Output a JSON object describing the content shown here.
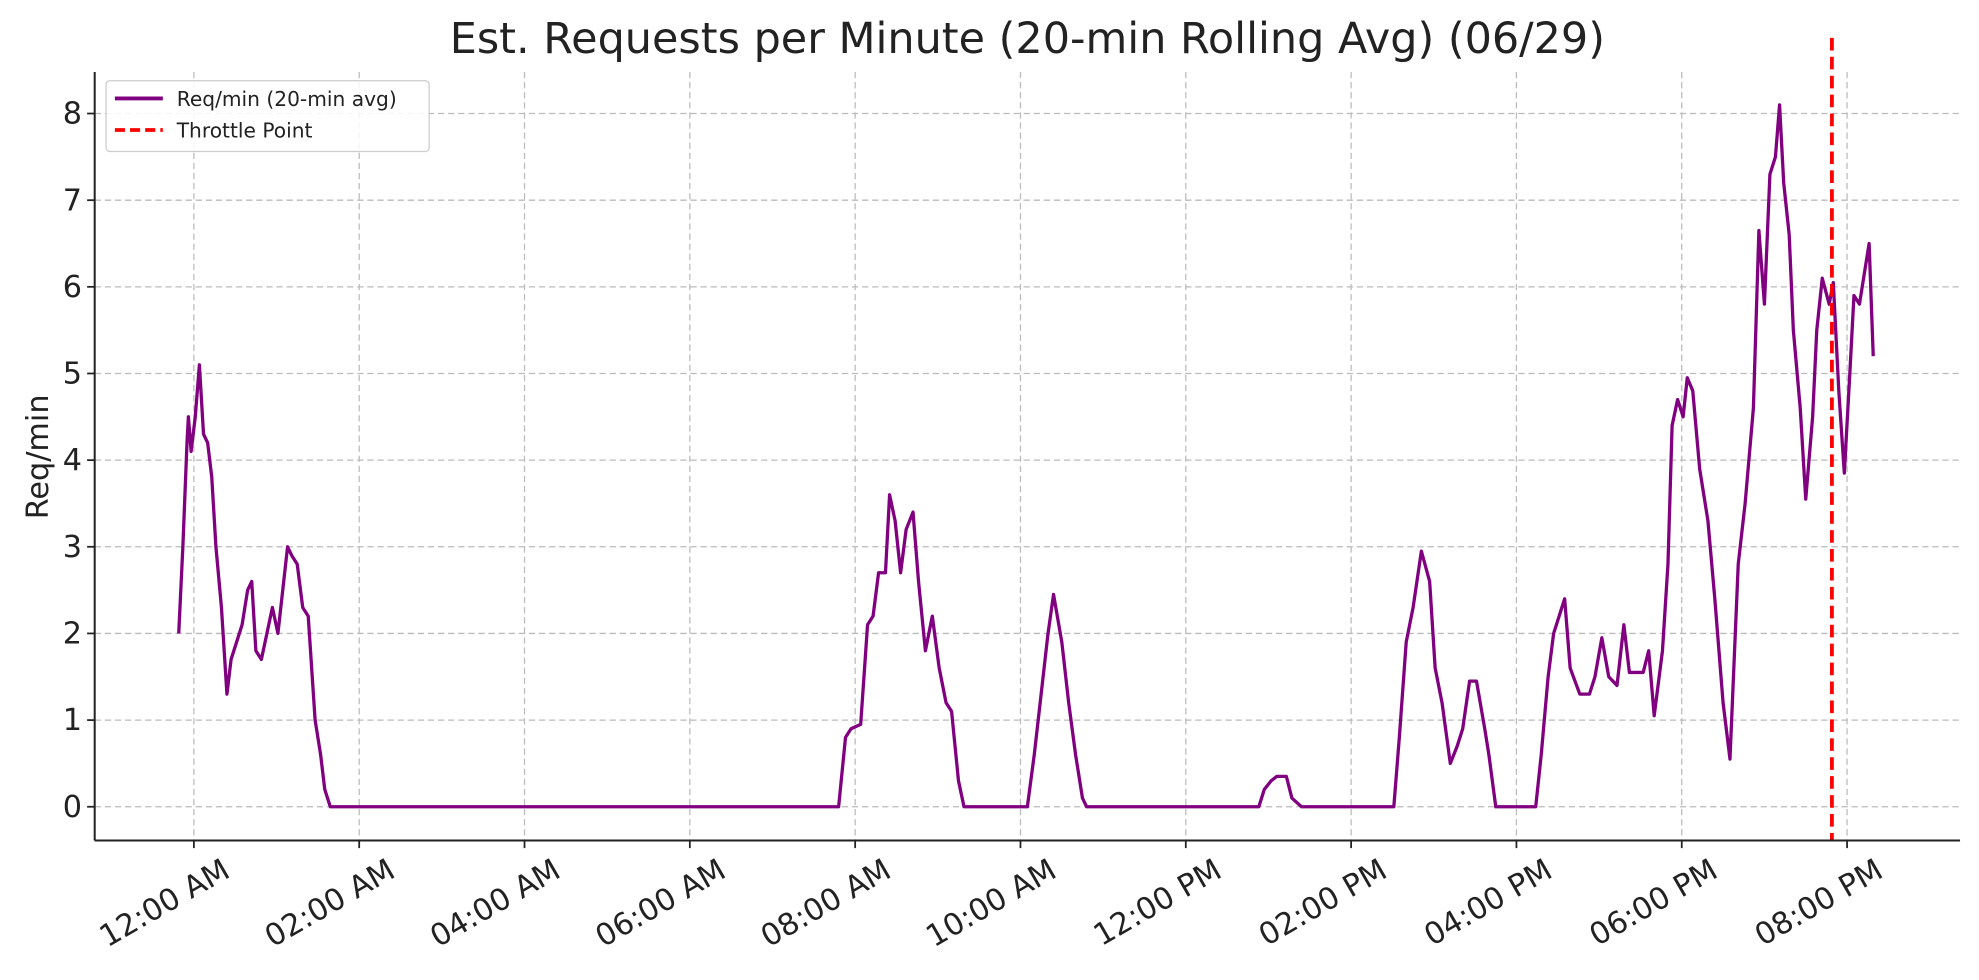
{
  "chart_data": {
    "type": "line",
    "title": "Est. Requests per Minute (20-min Rolling Avg) (06/29)",
    "ylabel": "Req/min",
    "x": [
      -11,
      -8,
      -5,
      -4,
      -2,
      1,
      4,
      7,
      10,
      13,
      16,
      20,
      24,
      27,
      31,
      35,
      39,
      42,
      45,
      49,
      53,
      57,
      61,
      68,
      71,
      75,
      79,
      83,
      88,
      92,
      95,
      99,
      468,
      473,
      477,
      484,
      489,
      493,
      497,
      502,
      505,
      509,
      513,
      517,
      522,
      526,
      531,
      536,
      541,
      546,
      550,
      555,
      559,
      605,
      610,
      615,
      620,
      624,
      630,
      635,
      640,
      645,
      648,
      773,
      777,
      782,
      786,
      793,
      797,
      804,
      871,
      875,
      880,
      885,
      891,
      897,
      901,
      906,
      912,
      917,
      921,
      926,
      931,
      937,
      940,
      945,
      974,
      978,
      983,
      987,
      995,
      999,
      1006,
      1013,
      1017,
      1022,
      1027,
      1033,
      1038,
      1042,
      1052,
      1056,
      1060,
      1066,
      1070,
      1073,
      1077,
      1081,
      1084,
      1088,
      1093,
      1099,
      1104,
      1110,
      1115,
      1121,
      1126,
      1132,
      1136,
      1140,
      1144,
      1148,
      1151,
      1154,
      1158,
      1161,
      1166,
      1170,
      1175,
      1178,
      1182,
      1187,
      1190,
      1194,
      1198,
      1202,
      1205,
      1209,
      1212,
      1216,
      1219
    ],
    "series": [
      {
        "name": "Req/min (20-min avg)",
        "color": "#800080",
        "values": [
          2.0,
          3.0,
          4.2,
          4.5,
          4.1,
          4.5,
          5.1,
          4.3,
          4.2,
          3.8,
          3.0,
          2.3,
          1.3,
          1.7,
          1.9,
          2.1,
          2.5,
          2.6,
          1.8,
          1.7,
          2.0,
          2.3,
          2.0,
          3.0,
          2.9,
          2.8,
          2.3,
          2.2,
          1.0,
          0.6,
          0.2,
          0,
          0,
          0.8,
          0.9,
          0.95,
          2.1,
          2.2,
          2.7,
          2.7,
          3.6,
          3.3,
          2.7,
          3.2,
          3.4,
          2.6,
          1.8,
          2.2,
          1.6,
          1.2,
          1.1,
          0.3,
          0,
          0,
          0.6,
          1.3,
          2.0,
          2.45,
          1.9,
          1.2,
          0.6,
          0.1,
          0,
          0,
          0.2,
          0.3,
          0.35,
          0.35,
          0.1,
          0,
          0,
          0.8,
          1.9,
          2.3,
          2.95,
          2.6,
          1.6,
          1.2,
          0.5,
          0.7,
          0.9,
          1.45,
          1.45,
          0.9,
          0.6,
          0,
          0,
          0.6,
          1.5,
          2.0,
          2.4,
          1.6,
          1.3,
          1.3,
          1.5,
          1.95,
          1.5,
          1.4,
          2.1,
          1.55,
          1.55,
          1.8,
          1.05,
          1.8,
          2.8,
          4.4,
          4.7,
          4.5,
          4.95,
          4.8,
          3.9,
          3.3,
          2.4,
          1.2,
          0.55,
          2.8,
          3.5,
          4.6,
          6.65,
          5.8,
          7.3,
          7.5,
          8.1,
          7.2,
          6.6,
          5.5,
          4.6,
          3.55,
          4.5,
          5.5,
          6.1,
          5.8,
          6.05,
          4.8,
          3.85,
          5.0,
          5.9,
          5.8,
          6.1,
          6.5,
          5.2
        ]
      }
    ],
    "vlines": [
      {
        "name": "Throttle Point",
        "x": 1189,
        "color": "#ff0000"
      }
    ],
    "xlim": [
      -72,
      1282
    ],
    "xticks": [
      {
        "value": 0,
        "label": "12:00 AM"
      },
      {
        "value": 120,
        "label": "02:00 AM"
      },
      {
        "value": 240,
        "label": "04:00 AM"
      },
      {
        "value": 360,
        "label": "06:00 AM"
      },
      {
        "value": 480,
        "label": "08:00 AM"
      },
      {
        "value": 600,
        "label": "10:00 AM"
      },
      {
        "value": 720,
        "label": "12:00 PM"
      },
      {
        "value": 840,
        "label": "02:00 PM"
      },
      {
        "value": 960,
        "label": "04:00 PM"
      },
      {
        "value": 1080,
        "label": "06:00 PM"
      },
      {
        "value": 1200,
        "label": "08:00 PM"
      }
    ],
    "ylim": [
      -0.39,
      8.48
    ],
    "yticks": [
      0,
      1,
      2,
      3,
      4,
      5,
      6,
      7,
      8
    ],
    "grid": true,
    "legend": "upper left"
  }
}
